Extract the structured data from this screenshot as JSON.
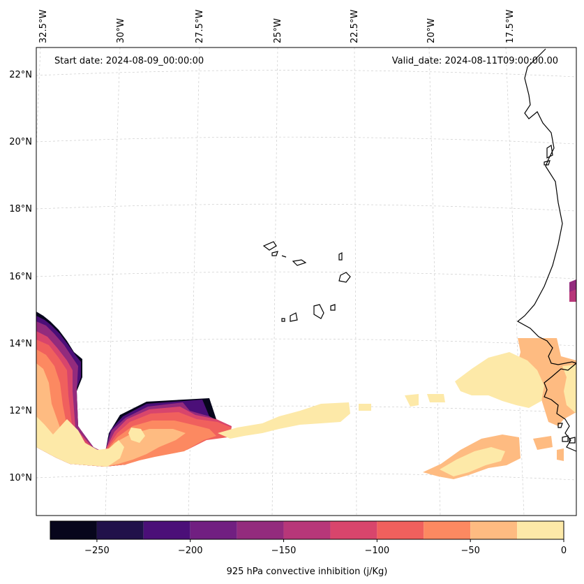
{
  "header": {
    "start_date": "Start date: 2024-08-09_00:00:00",
    "valid_date": "Valid_date: 2024-08-11T09:00:00.00"
  },
  "longitude_labels": [
    "32.5°W",
    "30°W",
    "27.5°W",
    "25°W",
    "22.5°W",
    "20°W",
    "17.5°W"
  ],
  "latitude_labels": [
    "22°N",
    "20°N",
    "18°N",
    "16°N",
    "14°N",
    "12°N",
    "10°N"
  ],
  "colorbar": {
    "label": "925 hPa convective inhibition (j/Kg)",
    "tick_labels": [
      "−250",
      "−200",
      "−150",
      "−100",
      "−50",
      "0"
    ],
    "levels": [
      -275,
      -250,
      -225,
      -200,
      -175,
      -150,
      -125,
      -100,
      -75,
      -50,
      -25,
      0
    ],
    "colors": [
      "#07061c",
      "#21114a",
      "#4b0f78",
      "#711f81",
      "#932b7d",
      "#b73779",
      "#d8456c",
      "#f0605d",
      "#fc8961",
      "#febb81",
      "#fde9a8"
    ]
  },
  "chart_data": {
    "type": "filled-contour map",
    "variable": "925 hPa convective inhibition",
    "units": "j/Kg",
    "value_range": [
      -275,
      0
    ],
    "longitude_range": [
      -33,
      -16
    ],
    "latitude_range": [
      9,
      22.7
    ]
  }
}
